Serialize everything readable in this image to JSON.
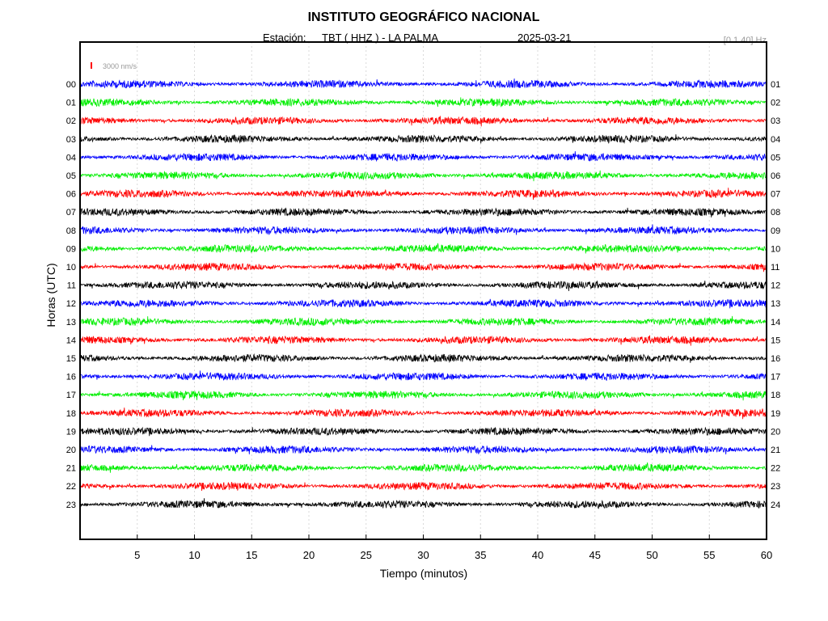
{
  "header": {
    "title": "INSTITUTO GEOGRÁFICO NACIONAL",
    "station_label": "Estación:",
    "station_value": "TBT ( HHZ ) - LA PALMA",
    "date": "2025-03-21",
    "filter": "[0.1 40] Hz",
    "scale_label": "3000 nm/s"
  },
  "colors": {
    "blue": "#0000ff",
    "green": "#00ee00",
    "red": "#ff0000",
    "black": "#000000",
    "scale_bar": "#ff0000",
    "grid": "#d9d9d9",
    "muted_text": "#999999"
  },
  "chart_data": {
    "type": "line",
    "title": "INSTITUTO GEOGRÁFICO NACIONAL",
    "xlabel": "Tiempo (minutos)",
    "ylabel": "Horas (UTC)",
    "xlim": [
      0,
      60
    ],
    "x_ticks": [
      5,
      10,
      15,
      20,
      25,
      30,
      35,
      40,
      45,
      50,
      55,
      60
    ],
    "grid": true,
    "left_hour_labels": [
      "00",
      "01",
      "02",
      "03",
      "04",
      "05",
      "06",
      "07",
      "08",
      "09",
      "10",
      "11",
      "12",
      "13",
      "14",
      "15",
      "16",
      "17",
      "18",
      "19",
      "20",
      "21",
      "22",
      "23"
    ],
    "right_hour_labels": [
      "01",
      "02",
      "03",
      "04",
      "05",
      "06",
      "07",
      "08",
      "09",
      "10",
      "11",
      "12",
      "13",
      "14",
      "15",
      "16",
      "17",
      "18",
      "19",
      "20",
      "21",
      "22",
      "23",
      "24"
    ],
    "trace_colors": [
      "blue",
      "green",
      "red",
      "black",
      "blue",
      "green",
      "red",
      "black",
      "blue",
      "green",
      "red",
      "black",
      "blue",
      "green",
      "red",
      "black",
      "blue",
      "green",
      "red",
      "black",
      "blue",
      "green",
      "red",
      "black"
    ],
    "amplitude_scale": "3000 nm/s"
  }
}
